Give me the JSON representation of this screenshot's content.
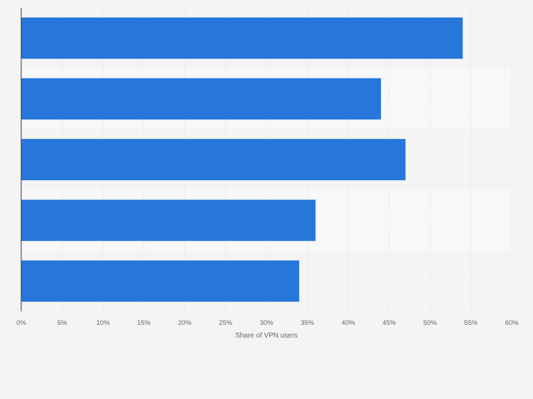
{
  "chart_data": {
    "type": "bar",
    "orientation": "horizontal",
    "title": "",
    "xlabel": "Share of VPN users",
    "ylabel": "",
    "categories": [
      "",
      "",
      "",
      "",
      ""
    ],
    "values": [
      54,
      44,
      47,
      36,
      34
    ],
    "xlim": [
      0,
      60
    ],
    "x_ticks": [
      0,
      5,
      10,
      15,
      20,
      25,
      30,
      35,
      40,
      45,
      50,
      55,
      60
    ],
    "tick_suffix": "%",
    "grid": true,
    "bar_color": "#2676dc",
    "band_colors": [
      "#f4f4f4",
      "#f8f8f8"
    ]
  }
}
